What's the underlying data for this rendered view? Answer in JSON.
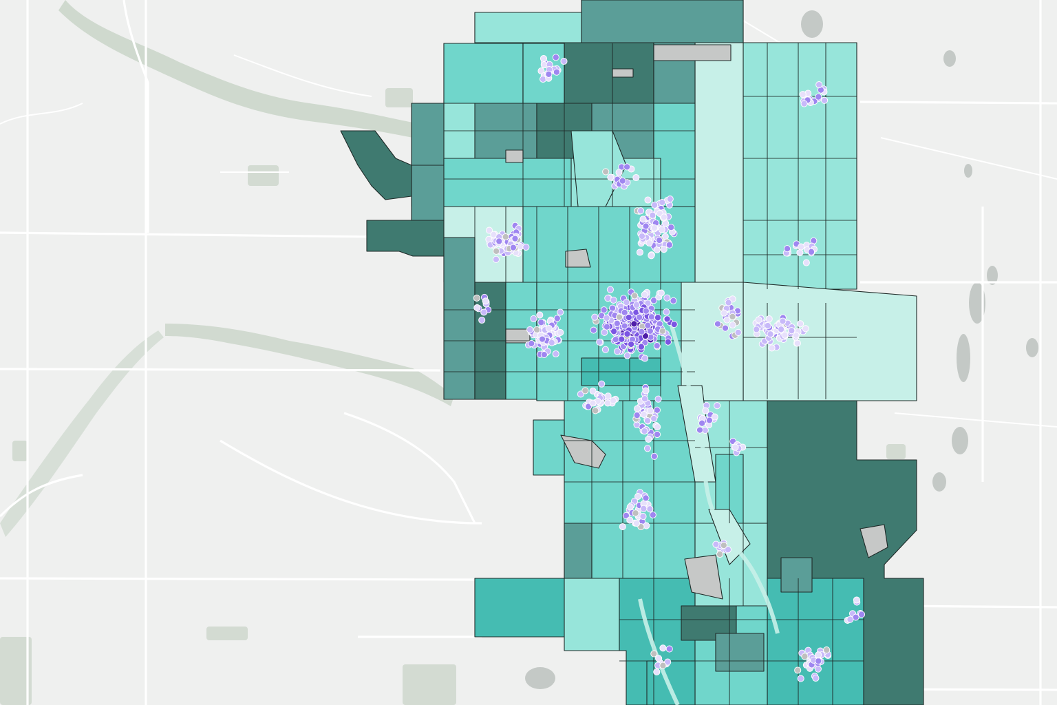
{
  "map": {
    "basemap_colors": {
      "land": "#eff0ef",
      "road": "#ffffff",
      "river": "#c7d3c6",
      "water": "#c4c9c6",
      "park": "#d3dbd2"
    },
    "choropleth": {
      "class_colors": [
        "#c7f0e8",
        "#97e5da",
        "#70d6cb",
        "#45bcb2",
        "#5b9e98",
        "#3f7a70"
      ],
      "no_data_color": "#c6c8c7",
      "boundary_color": "#1f2a28"
    },
    "points": {
      "colors": [
        "#e7e0fb",
        "#c8b9f9",
        "#9f86f0",
        "#7b55e2",
        "#4e1da8"
      ],
      "no_data_color": "#bfbfbf",
      "outline_color": "#ffffff"
    }
  }
}
